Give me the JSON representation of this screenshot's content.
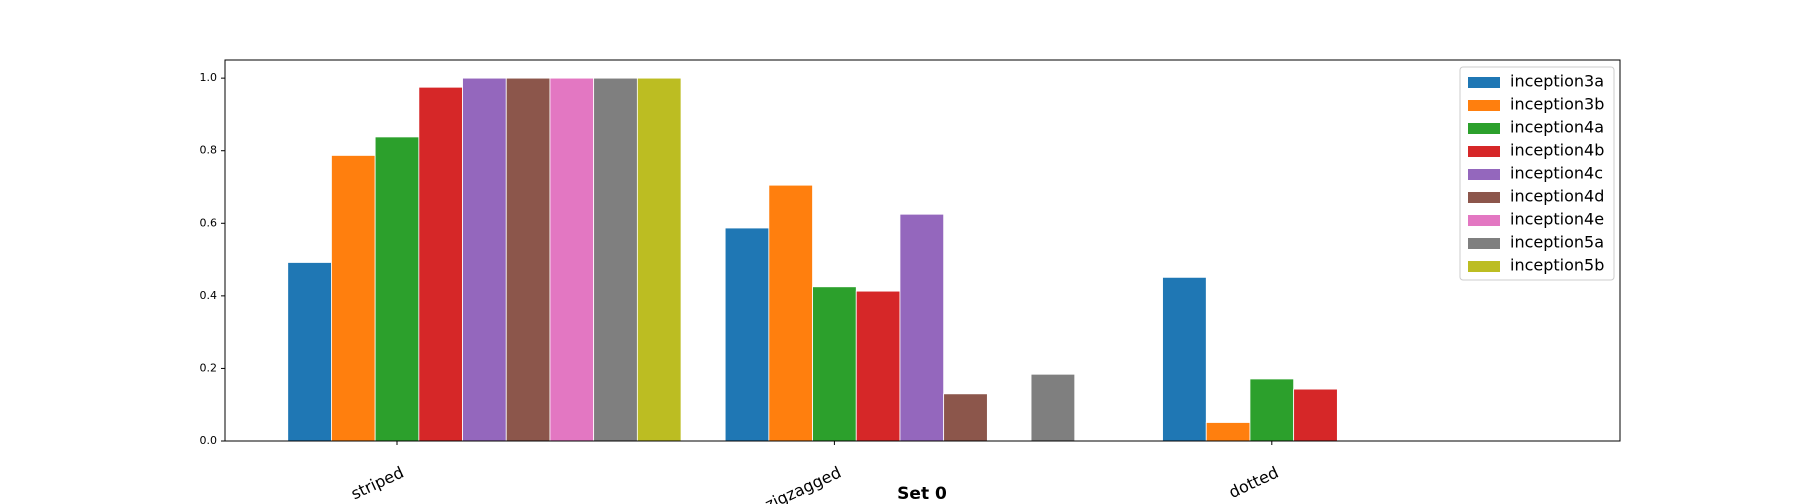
{
  "chart_data": {
    "type": "bar",
    "xlabel": "Set 0",
    "categories": [
      "striped",
      "zigzagged",
      "dotted"
    ],
    "series": [
      {
        "name": "inception3a",
        "color": "#1f77b4",
        "values": [
          0.492,
          0.587,
          0.451
        ]
      },
      {
        "name": "inception3b",
        "color": "#ff7f0e",
        "values": [
          0.787,
          0.705,
          0.051
        ]
      },
      {
        "name": "inception4a",
        "color": "#2ca02c",
        "values": [
          0.838,
          0.425,
          0.171
        ]
      },
      {
        "name": "inception4b",
        "color": "#d62728",
        "values": [
          0.975,
          0.413,
          0.143
        ]
      },
      {
        "name": "inception4c",
        "color": "#9467bd",
        "values": [
          1.0,
          0.625,
          0
        ]
      },
      {
        "name": "inception4d",
        "color": "#8c564b",
        "values": [
          1.0,
          0.13,
          0
        ]
      },
      {
        "name": "inception4e",
        "color": "#e377c2",
        "values": [
          1.0,
          0,
          0
        ]
      },
      {
        "name": "inception5a",
        "color": "#7f7f7f",
        "values": [
          1.0,
          0.184,
          0
        ]
      },
      {
        "name": "inception5b",
        "color": "#bcbd22",
        "values": [
          1.0,
          0,
          0
        ]
      }
    ],
    "ylim": [
      0,
      1.05
    ],
    "yticks": [
      {
        "value": 0,
        "label": "0.0"
      },
      {
        "value": 0.2,
        "label": "0.2"
      },
      {
        "value": 0.4,
        "label": "0.4"
      },
      {
        "value": 0.6,
        "label": "0.6"
      },
      {
        "value": 0.8,
        "label": "0.8"
      },
      {
        "value": 1.0,
        "label": "1.0"
      }
    ],
    "legend": "upper right"
  }
}
